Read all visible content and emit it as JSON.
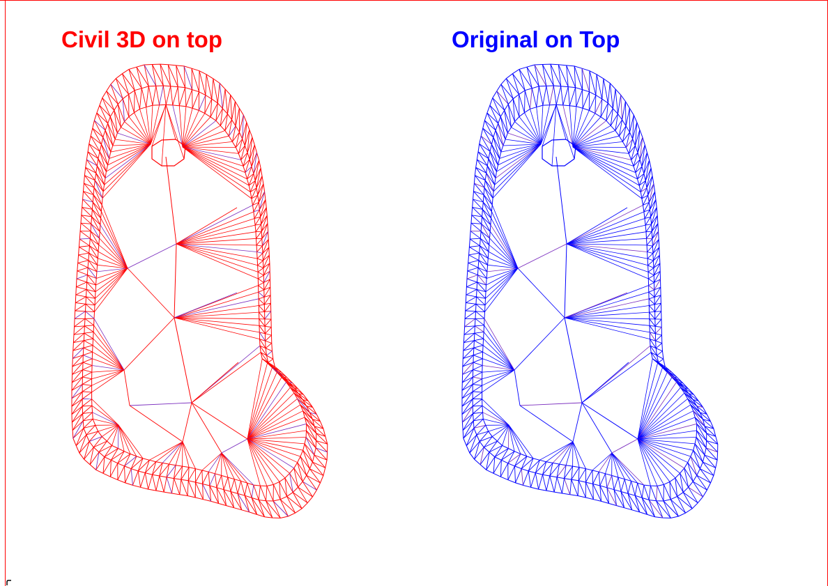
{
  "titles": {
    "left": "Civil 3D on top",
    "right": "Original on Top"
  },
  "colors": {
    "civil3d": "#ff0000",
    "original": "#0000ff",
    "underlay": "#7a2dbe",
    "frame": "#ff0000"
  }
}
